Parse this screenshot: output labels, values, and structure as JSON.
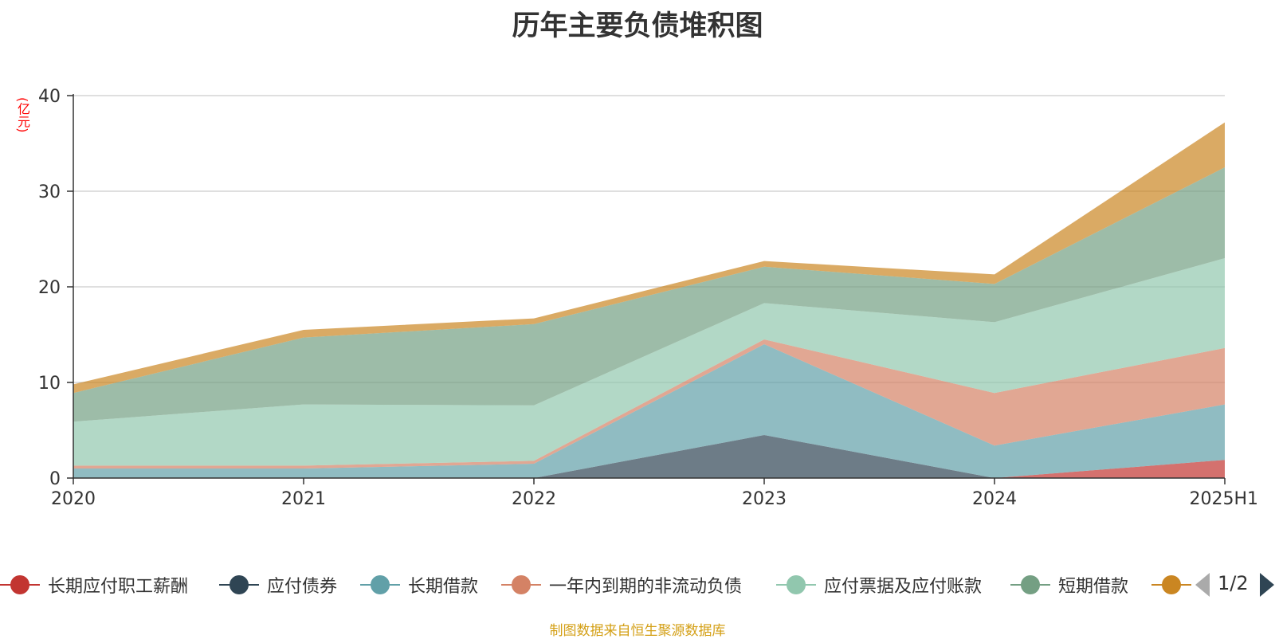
{
  "title": "历年主要负债堆积图",
  "unit": "(亿元)",
  "source_note": "制图数据来自恒生聚源数据库",
  "pager": {
    "text": "1/2"
  },
  "chart_data": {
    "type": "area",
    "stacked": true,
    "categories": [
      "2020",
      "2021",
      "2022",
      "2023",
      "2024",
      "2025H1"
    ],
    "ylim": [
      0,
      40
    ],
    "yticks": [
      0,
      10,
      20,
      30,
      40
    ],
    "grid": true,
    "legend_position": "bottom",
    "series": [
      {
        "name": "长期应付职工薪酬",
        "color": "#c23531",
        "values": [
          0,
          0,
          0,
          0,
          0,
          1.9
        ]
      },
      {
        "name": "应付债券",
        "color": "#2f4554",
        "values": [
          0,
          0,
          0,
          4.5,
          0,
          0
        ]
      },
      {
        "name": "长期借款",
        "color": "#61a0a8",
        "values": [
          1.0,
          1.0,
          1.5,
          9.5,
          3.4,
          5.8
        ]
      },
      {
        "name": "一年内到期的非流动负债",
        "color": "#d48265",
        "values": [
          0.3,
          0.3,
          0.3,
          0.5,
          5.5,
          5.9
        ]
      },
      {
        "name": "应付票据及应付账款",
        "color": "#91c7ae",
        "values": [
          4.6,
          6.4,
          5.8,
          3.8,
          7.4,
          9.4
        ]
      },
      {
        "name": "短期借款",
        "color": "#749f83",
        "values": [
          3.0,
          7.0,
          8.5,
          3.8,
          4.0,
          9.5
        ]
      },
      {
        "name": "",
        "color": "#ca8622",
        "values": [
          0.9,
          0.8,
          0.6,
          0.6,
          1.0,
          4.7
        ]
      }
    ]
  }
}
